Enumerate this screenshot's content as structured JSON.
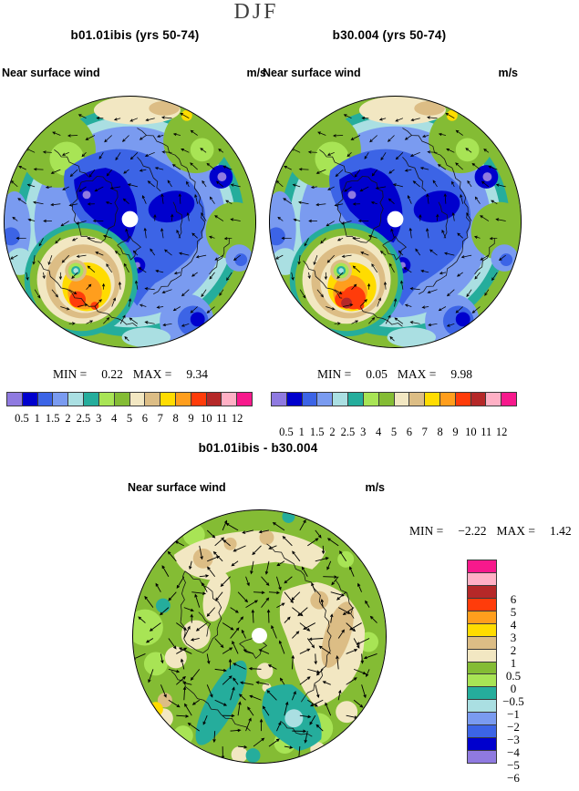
{
  "title": "DJF",
  "palette": {
    "colors_low_to_high": [
      "#8f7ae0",
      "#0000cd",
      "#3c64e6",
      "#7a9bf0",
      "#aadfe2",
      "#25ad9c",
      "#a8e455",
      "#84bc34",
      "#f2e7c2",
      "#dcbd85",
      "#ffdc00",
      "#ff9e1d",
      "#ff3c0a",
      "#b52828",
      "#ffb0c5",
      "#f7198c"
    ],
    "segment_outline": "#3a3a3a"
  },
  "speed_colorbar_ticks": [
    "0.5",
    "1",
    "1.5",
    "2",
    "2.5",
    "3",
    "4",
    "5",
    "6",
    "7",
    "8",
    "9",
    "10",
    "11",
    "12"
  ],
  "diff_colorbar_ticks_top_to_bottom": [
    "6",
    "5",
    "4",
    "3",
    "2",
    "1",
    "0.5",
    "0",
    "−0.5",
    "−1",
    "−2",
    "−3",
    "−4",
    "−5",
    "−6"
  ],
  "panels": [
    {
      "title": "b01.01ibis (yrs 50-74)",
      "field_label": "Near surface wind",
      "units": "m/s",
      "stats": {
        "min_label": "MIN =",
        "min_value": "0.22",
        "max_label": "MAX =",
        "max_value": "9.34"
      }
    },
    {
      "title": "b30.004 (yrs 50-74)",
      "field_label": "Near surface wind",
      "units": "m/s",
      "stats": {
        "min_label": "MIN =",
        "min_value": "0.05",
        "max_label": "MAX =",
        "max_value": "9.98"
      }
    },
    {
      "title": "b01.01ibis - b30.004",
      "field_label": "Near surface wind",
      "units": "m/s",
      "stats": {
        "min_label": "MIN =",
        "min_value": "−2.22",
        "max_label": "MAX =",
        "max_value": "1.42"
      }
    }
  ],
  "chart_data": [
    {
      "type": "heatmap",
      "subtype": "filled-contour polar map with wind vectors",
      "season_title": "DJF",
      "title": "b01.01ibis (yrs 50-74)",
      "variable": "Near surface wind",
      "units": "m/s",
      "projection": "north polar stereographic",
      "overlays": [
        "wind vector arrows",
        "coastlines",
        "white pole hole"
      ],
      "contour_levels": [
        0.5,
        1,
        1.5,
        2,
        2.5,
        3,
        4,
        5,
        6,
        7,
        8,
        9,
        10,
        11,
        12
      ],
      "palette_low_to_high": [
        "#8f7ae0",
        "#0000cd",
        "#3c64e6",
        "#7a9bf0",
        "#aadfe2",
        "#25ad9c",
        "#a8e455",
        "#84bc34",
        "#f2e7c2",
        "#dcbd85",
        "#ffdc00",
        "#ff9e1d",
        "#ff3c0a",
        "#b52828",
        "#ffb0c5",
        "#f7198c"
      ],
      "min": 0.22,
      "max": 9.34,
      "legend_position": "bottom horizontal"
    },
    {
      "type": "heatmap",
      "subtype": "filled-contour polar map with wind vectors",
      "season_title": "DJF",
      "title": "b30.004 (yrs 50-74)",
      "variable": "Near surface wind",
      "units": "m/s",
      "projection": "north polar stereographic",
      "overlays": [
        "wind vector arrows",
        "coastlines",
        "white pole hole"
      ],
      "contour_levels": [
        0.5,
        1,
        1.5,
        2,
        2.5,
        3,
        4,
        5,
        6,
        7,
        8,
        9,
        10,
        11,
        12
      ],
      "palette_low_to_high": [
        "#8f7ae0",
        "#0000cd",
        "#3c64e6",
        "#7a9bf0",
        "#aadfe2",
        "#25ad9c",
        "#a8e455",
        "#84bc34",
        "#f2e7c2",
        "#dcbd85",
        "#ffdc00",
        "#ff9e1d",
        "#ff3c0a",
        "#b52828",
        "#ffb0c5",
        "#f7198c"
      ],
      "min": 0.05,
      "max": 9.98,
      "legend_position": "bottom horizontal"
    },
    {
      "type": "heatmap",
      "subtype": "filled-contour polar difference map with wind-difference vectors",
      "season_title": "DJF",
      "title": "b01.01ibis - b30.004",
      "variable": "Near surface wind",
      "units": "m/s",
      "projection": "north polar stereographic",
      "overlays": [
        "wind vector arrows",
        "coastlines",
        "white pole hole"
      ],
      "contour_levels": [
        -6,
        -5,
        -4,
        -3,
        -2,
        -1,
        -0.5,
        0,
        0.5,
        1,
        2,
        3,
        4,
        5,
        6
      ],
      "palette_low_to_high": [
        "#8f7ae0",
        "#0000cd",
        "#3c64e6",
        "#7a9bf0",
        "#aadfe2",
        "#25ad9c",
        "#a8e455",
        "#84bc34",
        "#f2e7c2",
        "#dcbd85",
        "#ffdc00",
        "#ff9e1d",
        "#ff3c0a",
        "#b52828",
        "#ffb0c5",
        "#f7198c"
      ],
      "min": -2.22,
      "max": 1.42,
      "legend_position": "right vertical"
    }
  ]
}
